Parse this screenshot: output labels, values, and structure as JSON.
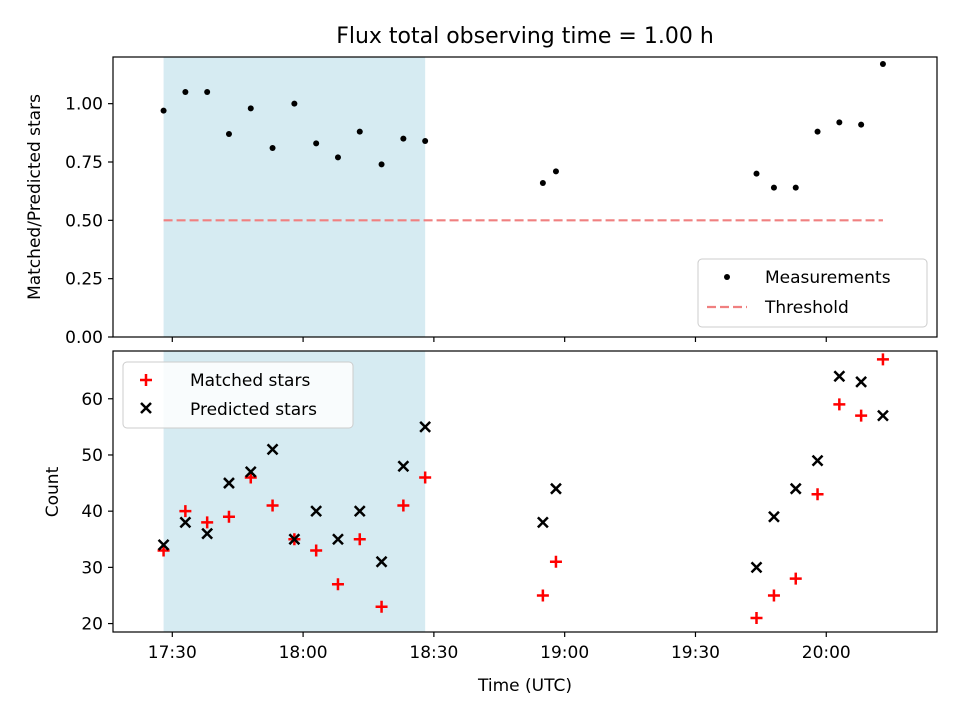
{
  "chart_data": [
    {
      "type": "scatter",
      "title": "Flux total observing time = 1.00 h",
      "ylabel": "Matched/Predicted stars",
      "ylim": [
        0,
        1.2
      ],
      "yticks": [
        "0.00",
        "0.25",
        "0.50",
        "0.75",
        "1.00"
      ],
      "shaded_region": {
        "from": "17:28",
        "to": "18:28",
        "color": "#add8e6"
      },
      "legend": {
        "position": "bottom-right",
        "entries": [
          "Measurements",
          "Threshold"
        ]
      },
      "series": [
        {
          "name": "Measurements",
          "marker": "dot",
          "color": "#000000",
          "x": [
            "17:28",
            "17:33",
            "17:38",
            "17:43",
            "17:48",
            "17:53",
            "17:58",
            "18:03",
            "18:08",
            "18:13",
            "18:18",
            "18:23",
            "18:28",
            "18:55",
            "18:58",
            "19:44",
            "19:48",
            "19:53",
            "19:58",
            "20:03",
            "20:08",
            "20:13"
          ],
          "values": [
            0.97,
            1.05,
            1.05,
            0.87,
            0.98,
            0.81,
            1.0,
            0.83,
            0.77,
            0.88,
            0.74,
            0.85,
            0.84,
            0.66,
            0.71,
            0.7,
            0.64,
            0.64,
            0.88,
            0.92,
            0.91,
            1.17
          ]
        },
        {
          "name": "Threshold",
          "line": "dashed",
          "color": "#f08080",
          "x": [
            "17:28",
            "20:13"
          ],
          "values": [
            0.5,
            0.5
          ]
        }
      ]
    },
    {
      "type": "scatter",
      "xlabel": "Time (UTC)",
      "ylabel": "Count",
      "ylim": [
        18.5,
        68.5
      ],
      "yticks": [
        "20",
        "30",
        "40",
        "50",
        "60"
      ],
      "xticks": [
        "17:30",
        "18:00",
        "18:30",
        "19:00",
        "19:30",
        "20:00"
      ],
      "shaded_region": {
        "from": "17:28",
        "to": "18:28",
        "color": "#add8e6"
      },
      "legend": {
        "position": "top-left",
        "entries": [
          "Matched stars",
          "Predicted stars"
        ]
      },
      "series": [
        {
          "name": "Matched stars",
          "marker": "plus",
          "color": "#ff0000",
          "x": [
            "17:28",
            "17:33",
            "17:38",
            "17:43",
            "17:48",
            "17:53",
            "17:58",
            "18:03",
            "18:08",
            "18:13",
            "18:18",
            "18:23",
            "18:28",
            "18:55",
            "18:58",
            "19:44",
            "19:48",
            "19:53",
            "19:58",
            "20:03",
            "20:08",
            "20:13"
          ],
          "values": [
            33,
            40,
            38,
            39,
            46,
            41,
            35,
            33,
            27,
            35,
            23,
            41,
            46,
            25,
            31,
            21,
            25,
            28,
            43,
            59,
            57,
            67
          ]
        },
        {
          "name": "Predicted stars",
          "marker": "x",
          "color": "#000000",
          "x": [
            "17:28",
            "17:33",
            "17:38",
            "17:43",
            "17:48",
            "17:53",
            "17:58",
            "18:03",
            "18:08",
            "18:13",
            "18:18",
            "18:23",
            "18:28",
            "18:55",
            "18:58",
            "19:44",
            "19:48",
            "19:53",
            "19:58",
            "20:03",
            "20:08",
            "20:13"
          ],
          "values": [
            34,
            38,
            36,
            45,
            47,
            51,
            35,
            40,
            35,
            40,
            31,
            48,
            55,
            38,
            44,
            30,
            39,
            44,
            49,
            64,
            63,
            57
          ]
        }
      ]
    }
  ]
}
